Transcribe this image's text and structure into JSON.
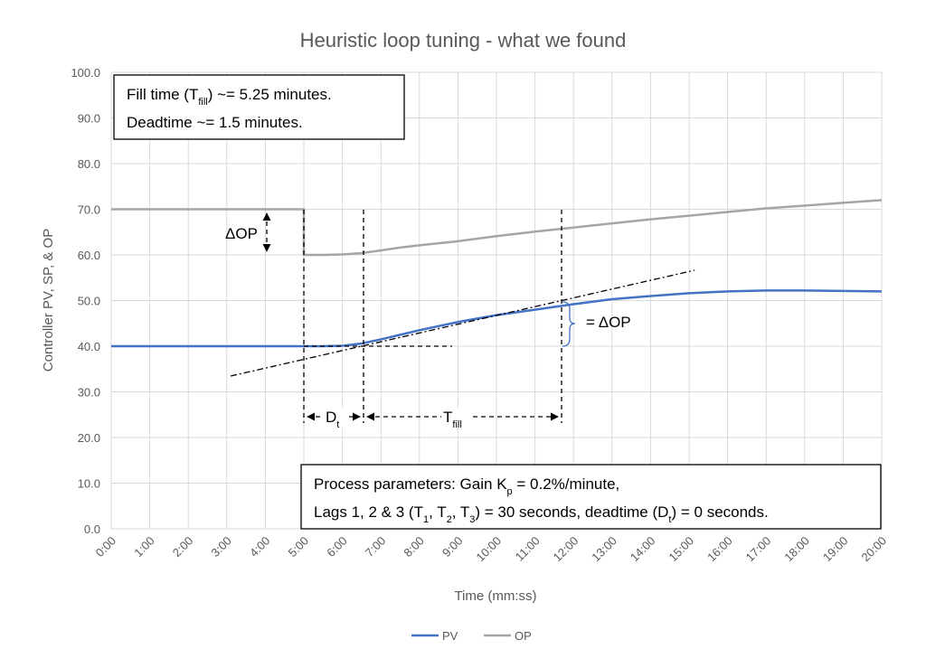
{
  "chart_data": {
    "type": "line",
    "title": "Heuristic loop tuning - what we found",
    "x_label": "Time (mm:ss)",
    "y_label": "Controller PV, SP, & OP",
    "x": [
      0,
      1,
      2,
      3,
      4,
      5,
      5,
      5.5,
      6,
      6.5,
      7,
      7.5,
      8,
      9,
      10,
      11,
      12,
      13,
      14,
      15,
      16,
      17,
      18,
      19,
      20
    ],
    "series": [
      {
        "name": "PV",
        "color": "#4472c4",
        "values": [
          40,
          40,
          40,
          40,
          40,
          40,
          40,
          40,
          40.1,
          40.6,
          41.5,
          42.5,
          43.5,
          45.3,
          46.8,
          48,
          49.2,
          50.3,
          51,
          51.6,
          52,
          52.2,
          52.2,
          52.1,
          52
        ]
      },
      {
        "name": "OP",
        "color": "#a5a5a5",
        "values": [
          70,
          70,
          70,
          70,
          70,
          70,
          60,
          60,
          60.1,
          60.4,
          61,
          61.6,
          62.1,
          63,
          64.1,
          65.1,
          66,
          66.9,
          67.8,
          68.6,
          69.4,
          70.2,
          70.8,
          71.4,
          72
        ]
      }
    ],
    "xlim": [
      0,
      20
    ],
    "xticks": [
      {
        "value": 0,
        "label": "0:00"
      },
      {
        "value": 1,
        "label": "1:00"
      },
      {
        "value": 2,
        "label": "2:00"
      },
      {
        "value": 3,
        "label": "3:00"
      },
      {
        "value": 4,
        "label": "4:00"
      },
      {
        "value": 5,
        "label": "5:00"
      },
      {
        "value": 6,
        "label": "6:00"
      },
      {
        "value": 7,
        "label": "7:00"
      },
      {
        "value": 8,
        "label": "8:00"
      },
      {
        "value": 9,
        "label": "9:00"
      },
      {
        "value": 10,
        "label": "10:00"
      },
      {
        "value": 11,
        "label": "11:00"
      },
      {
        "value": 12,
        "label": "12:00"
      },
      {
        "value": 13,
        "label": "13:00"
      },
      {
        "value": 14,
        "label": "14:00"
      },
      {
        "value": 15,
        "label": "15:00"
      },
      {
        "value": 16,
        "label": "16:00"
      },
      {
        "value": 17,
        "label": "17:00"
      },
      {
        "value": 18,
        "label": "18:00"
      },
      {
        "value": 19,
        "label": "19:00"
      },
      {
        "value": 20,
        "label": "20:00"
      }
    ],
    "ylim": [
      0,
      100
    ],
    "yticks": [
      {
        "value": 0,
        "label": "0.0"
      },
      {
        "value": 10,
        "label": "10.0"
      },
      {
        "value": 20,
        "label": "20.0"
      },
      {
        "value": 30,
        "label": "30.0"
      },
      {
        "value": 40,
        "label": "40.0"
      },
      {
        "value": 50,
        "label": "50.0"
      },
      {
        "value": 60,
        "label": "60.0"
      },
      {
        "value": 70,
        "label": "70.0"
      },
      {
        "value": 80,
        "label": "80.0"
      },
      {
        "value": 90,
        "label": "90.0"
      },
      {
        "value": 100,
        "label": "100.0"
      }
    ],
    "grid": true,
    "legend": "bottom",
    "annotations": [
      {
        "lines": [
          [
            "Fill time (T",
            "fill",
            ") ~= 5.25 minutes."
          ],
          [
            "Deadtime ~= 1.5 minutes."
          ]
        ]
      },
      {
        "lines": [
          [
            "Process parameters: Gain K",
            "p",
            " = 0.2%/minute,"
          ],
          [
            "Lags 1, 2 & 3 (T",
            "1",
            ", T",
            "2",
            ", T",
            "3",
            ") = 30 seconds, deadtime (D",
            "t",
            ") = 0 seconds."
          ]
        ]
      },
      {
        "lines": [
          [
            "ΔOP"
          ]
        ]
      },
      {
        "lines": [
          [
            "D",
            "t"
          ]
        ]
      },
      {
        "lines": [
          [
            "T",
            "fill"
          ]
        ]
      },
      {
        "lines": [
          [
            "= ΔOP"
          ]
        ]
      }
    ]
  }
}
